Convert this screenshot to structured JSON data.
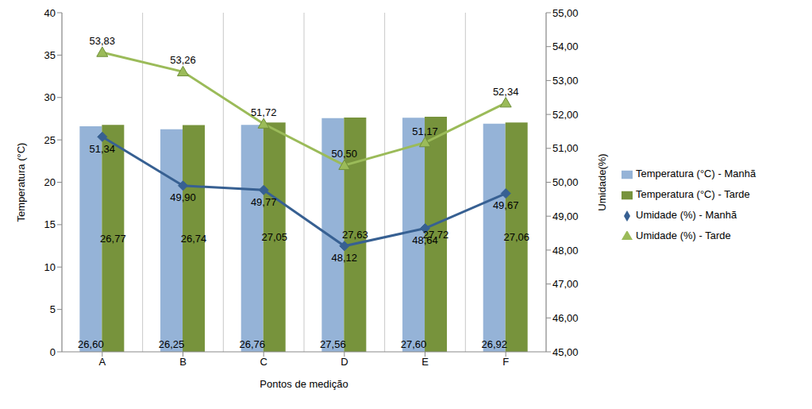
{
  "chart_data": {
    "type": "bar",
    "categories": [
      "A",
      "B",
      "C",
      "D",
      "E",
      "F"
    ],
    "x_label": "Pontos de medição",
    "y_label": "Temperatura (°C)",
    "y2_label": "Umidade(%)",
    "ylim": [
      0,
      40
    ],
    "yticks": [
      0,
      5,
      10,
      15,
      20,
      25,
      30,
      35,
      40
    ],
    "y2lim": [
      45,
      55
    ],
    "y2ticks": [
      {
        "value": 45,
        "label": "45,00"
      },
      {
        "value": 46,
        "label": "46,00"
      },
      {
        "value": 47,
        "label": "47,00"
      },
      {
        "value": 48,
        "label": "48,00"
      },
      {
        "value": 49,
        "label": "49,00"
      },
      {
        "value": 50,
        "label": "50,00"
      },
      {
        "value": 51,
        "label": "51,00"
      },
      {
        "value": 52,
        "label": "52,00"
      },
      {
        "value": 53,
        "label": "53,00"
      },
      {
        "value": 54,
        "label": "54,00"
      },
      {
        "value": 55,
        "label": "55,00"
      }
    ],
    "grid": true,
    "legend": "right",
    "data_labels": true,
    "series": [
      {
        "name": "Temperatura (°C) - Manhã",
        "type": "bar",
        "color": "#95b3d7",
        "values": [
          26.6,
          26.25,
          26.76,
          27.56,
          27.6,
          26.92
        ],
        "value_labels": [
          "26,60",
          "26,25",
          "26,76",
          "27,56",
          "27,60",
          "26,92"
        ]
      },
      {
        "name": "Temperatura (°C) - Tarde",
        "type": "bar",
        "color": "#77933c",
        "values": [
          26.77,
          26.74,
          27.05,
          27.63,
          27.72,
          27.06
        ],
        "value_labels": [
          "26,77",
          "26,74",
          "27,05",
          "27,63",
          "27,72",
          "27,06"
        ]
      },
      {
        "name": "Umidade (%) - Manhã",
        "type": "line",
        "axis": "y2",
        "color": "#376092",
        "marker": "diamond",
        "values": [
          51.34,
          49.9,
          49.77,
          48.12,
          48.64,
          49.67
        ],
        "value_labels": [
          "51,34",
          "49,90",
          "49,77",
          "48,12",
          "48,64",
          "49,67"
        ]
      },
      {
        "name": "Umidade (%) - Tarde",
        "type": "line",
        "axis": "y2",
        "color": "#9bbb59",
        "marker": "triangle",
        "values": [
          53.83,
          53.26,
          51.72,
          50.5,
          51.17,
          52.34
        ],
        "value_labels": [
          "53,83",
          "53,26",
          "51,72",
          "50,50",
          "51,17",
          "52,34"
        ]
      }
    ]
  }
}
